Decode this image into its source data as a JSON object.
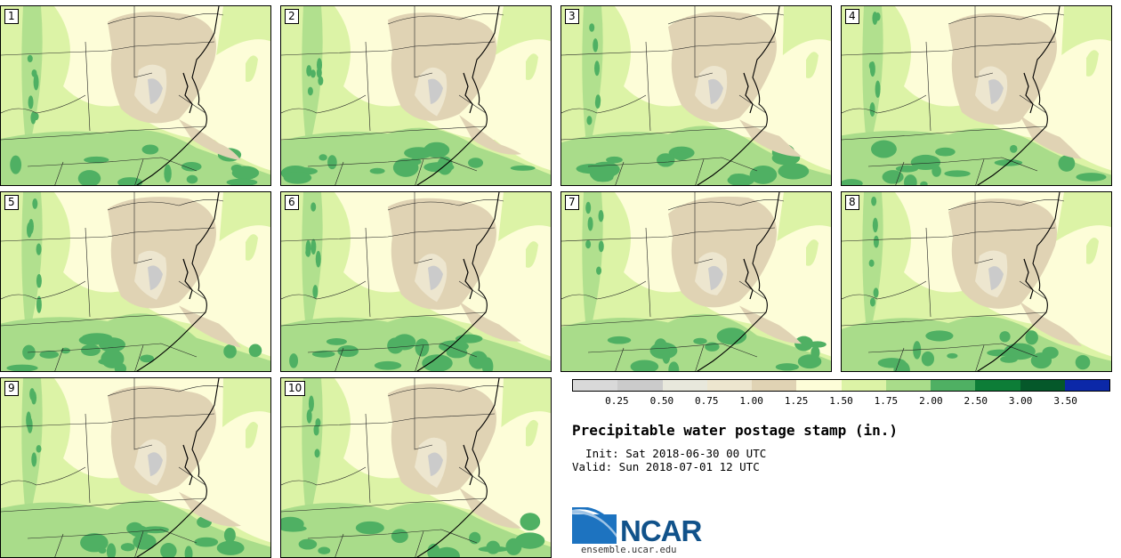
{
  "panels": [
    {
      "label": "1"
    },
    {
      "label": "2"
    },
    {
      "label": "3"
    },
    {
      "label": "4"
    },
    {
      "label": "5"
    },
    {
      "label": "6"
    },
    {
      "label": "7"
    },
    {
      "label": "8"
    },
    {
      "label": "9"
    },
    {
      "label": "10"
    }
  ],
  "legend": {
    "colors": [
      "#d9d9d9",
      "#cbcbcb",
      "#e8e8dc",
      "#ede6cf",
      "#e0d3b4",
      "#fdfdd8",
      "#dcf3a6",
      "#a9dc8a",
      "#4fb063",
      "#0d7d37",
      "#05582a",
      "#0b28a8"
    ],
    "ticks": [
      "0.25",
      "0.50",
      "0.75",
      "1.00",
      "1.25",
      "1.50",
      "1.75",
      "2.00",
      "2.50",
      "3.00",
      "3.50"
    ]
  },
  "title": "Precipitable water postage stamp (in.)",
  "init": "  Init: Sat 2018-06-30 00 UTC",
  "valid": "Valid: Sun 2018-07-01 12 UTC",
  "logo": {
    "text": "NCAR",
    "url": "ensemble.ucar.edu"
  }
}
